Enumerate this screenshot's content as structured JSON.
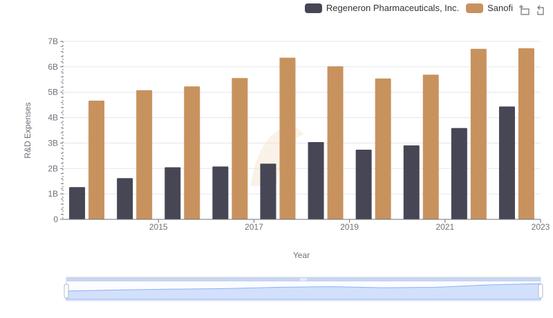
{
  "legend": {
    "items": [
      {
        "label": "Regeneron Pharmaceuticals, Inc.",
        "color": "#464655"
      },
      {
        "label": "Sanofi",
        "color": "#c8925e"
      }
    ]
  },
  "toolbox": {
    "icons": [
      "zoom-icon",
      "zoom-reset-icon"
    ]
  },
  "chart_data": {
    "type": "bar",
    "x": [
      2014,
      2015,
      2016,
      2017,
      2018,
      2019,
      2020,
      2021,
      2022,
      2023
    ],
    "x_tick_labels": [
      "2015",
      "2017",
      "2019",
      "2021",
      "2023"
    ],
    "xlabel": "Year",
    "ylabel": "R&D Expenses",
    "ylim": [
      0,
      7000000000
    ],
    "y_tick_labels": [
      "0",
      "1B",
      "2B",
      "3B",
      "4B",
      "5B",
      "6B",
      "7B"
    ],
    "grid": true,
    "legend_position": "top-right",
    "series": [
      {
        "name": "Regeneron Pharmaceuticals, Inc.",
        "color": "#464655",
        "values": [
          1270000000,
          1620000000,
          2050000000,
          2080000000,
          2190000000,
          3040000000,
          2740000000,
          2910000000,
          3590000000,
          4440000000
        ]
      },
      {
        "name": "Sanofi",
        "color": "#c8925e",
        "values": [
          4670000000,
          5080000000,
          5230000000,
          5560000000,
          6360000000,
          6020000000,
          5540000000,
          5690000000,
          6710000000,
          6730000000
        ]
      }
    ]
  }
}
